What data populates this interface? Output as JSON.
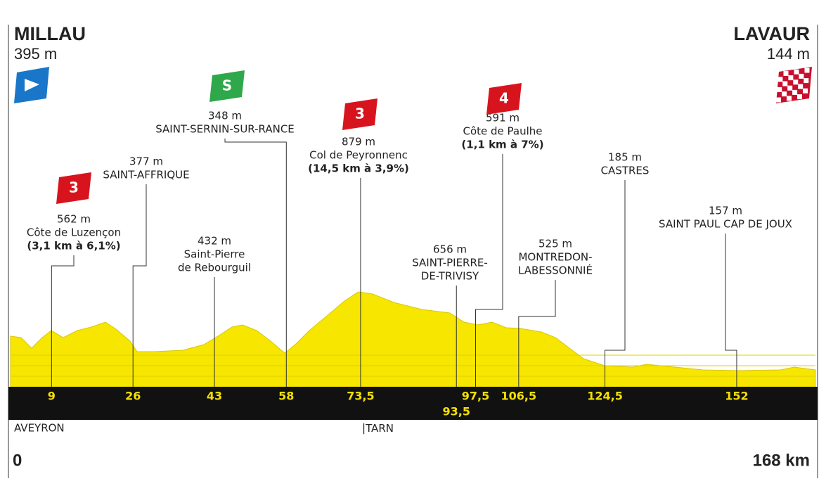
{
  "start": {
    "name": "MILLAU",
    "altitude": "395 m",
    "km": 0
  },
  "finish": {
    "name": "LAVAUR",
    "altitude": "144 m",
    "km": {
      "value": 168,
      "label": "168 km"
    }
  },
  "points": [
    {
      "km": 9,
      "altitude": "562 m",
      "name": [
        "Côte de Luzençon"
      ],
      "detail": "(3,1 km à 6,1%)",
      "category": "3"
    },
    {
      "km": 26,
      "altitude": "377 m",
      "name": [
        "SAINT-AFFRIQUE"
      ]
    },
    {
      "km": 43,
      "altitude": "432 m",
      "name": [
        "Saint-Pierre",
        "de Rebourguil"
      ]
    },
    {
      "km": 58,
      "altitude": "348 m",
      "name": [
        "SAINT-SERNIN-SUR-RANCE"
      ],
      "category": "S"
    },
    {
      "km": {
        "value": 73.5,
        "label": "73,5"
      },
      "altitude": "879 m",
      "name": [
        "Col de Peyronnenc"
      ],
      "detail": "(14,5 km à 3,9%)",
      "category": "3"
    },
    {
      "km": {
        "value": 93.5,
        "label": "93,5"
      },
      "altitude": "656 m",
      "name": [
        "SAINT-PIERRE-",
        "DE-TRIVISY"
      ]
    },
    {
      "km": {
        "value": 97.5,
        "label": "97,5"
      },
      "altitude": "591 m",
      "name": [
        "Côte de Paulhe"
      ],
      "detail": "(1,1 km à 7%)",
      "category": "4"
    },
    {
      "km": {
        "value": 106.5,
        "label": "106,5"
      },
      "altitude": "525 m",
      "name": [
        "MONTREDON-",
        "LABESSONNIÉ"
      ]
    },
    {
      "km": {
        "value": 124.5,
        "label": "124,5"
      },
      "altitude": "185 m",
      "name": [
        "CASTRES"
      ]
    },
    {
      "km": 152,
      "altitude": "157 m",
      "name": [
        "SAINT PAUL CAP DE JOUX"
      ]
    }
  ],
  "regions": [
    "AVEYRON",
    "TARN"
  ]
}
